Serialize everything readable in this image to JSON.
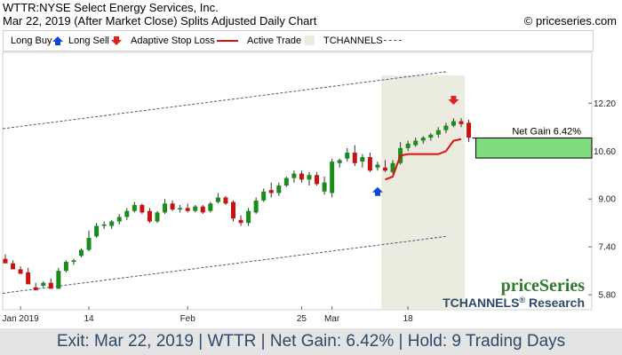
{
  "header": {
    "title": "WTTR:NYSE Select Energy Services, Inc.",
    "subtitle": "Mar 22, 2019 (After Market Close)  Splits Adjusted Daily Chart",
    "copyright": "© priceseries.com"
  },
  "legend": {
    "long_buy": "Long Buy",
    "long_sell": "Long Sell",
    "adaptive_stop": "Adaptive Stop Loss",
    "active_trade": "Active Trade",
    "tchannels": "TCHANNELS"
  },
  "brand": {
    "logo": "priceSeries",
    "tagline_main": "TCHANNELS",
    "tagline_reg": "®",
    "tagline_tail": " Research"
  },
  "footer": {
    "text": "Exit: Mar 22, 2019 | WTTR | Net Gain: 6.42% | Hold: 9 Trading Days"
  },
  "colors": {
    "up": "#1a8c1a",
    "down": "#cc1111",
    "stop": "#dd1111",
    "buy_arrow": "#1144dd",
    "sell_arrow": "#dd2222",
    "active_band": "#ebebdf",
    "gain_box": "#7fdc7f",
    "channel": "#4a5a7a"
  },
  "chart_data": {
    "type": "candlestick",
    "y_ticks": [
      5.8,
      7.4,
      9.0,
      10.6,
      12.2
    ],
    "y_tick_labels": [
      "5.80",
      "7.40",
      "9.00",
      "10.60",
      "12.20"
    ],
    "ylim": [
      5.3,
      13.9
    ],
    "x_labels": [
      {
        "label": "Jan 2019",
        "index": 2
      },
      {
        "label": "14",
        "index": 11
      },
      {
        "label": "Feb",
        "index": 24
      },
      {
        "label": "25",
        "index": 39
      },
      {
        "label": "Mar",
        "index": 43
      },
      {
        "label": "18",
        "index": 53
      }
    ],
    "candles": [
      [
        7.0,
        7.15,
        6.9,
        6.85
      ],
      [
        6.85,
        6.95,
        6.7,
        6.65
      ],
      [
        6.65,
        6.75,
        6.55,
        6.5
      ],
      [
        6.55,
        6.7,
        6.2,
        6.15
      ],
      [
        6.05,
        6.2,
        6.0,
        5.95
      ],
      [
        6.1,
        6.25,
        6.05,
        6.2
      ],
      [
        6.2,
        6.35,
        6.05,
        6.0
      ],
      [
        6.0,
        6.7,
        6.0,
        6.6
      ],
      [
        6.6,
        6.95,
        6.55,
        6.9
      ],
      [
        6.9,
        7.0,
        6.8,
        6.95
      ],
      [
        7.1,
        7.35,
        7.05,
        7.3
      ],
      [
        7.3,
        7.95,
        7.25,
        7.7
      ],
      [
        7.75,
        8.2,
        7.7,
        8.1
      ],
      [
        8.1,
        8.25,
        8.0,
        8.15
      ],
      [
        8.1,
        8.3,
        8.0,
        8.25
      ],
      [
        8.25,
        8.5,
        8.15,
        8.4
      ],
      [
        8.4,
        8.7,
        8.3,
        8.6
      ],
      [
        8.6,
        8.9,
        8.55,
        8.8
      ],
      [
        8.8,
        8.85,
        8.5,
        8.55
      ],
      [
        8.6,
        8.7,
        8.2,
        8.25
      ],
      [
        8.25,
        8.6,
        8.2,
        8.55
      ],
      [
        8.55,
        9.0,
        8.5,
        8.85
      ],
      [
        8.85,
        8.95,
        8.6,
        8.65
      ],
      [
        8.65,
        8.8,
        8.55,
        8.7
      ],
      [
        8.7,
        8.85,
        8.55,
        8.6
      ],
      [
        8.6,
        8.8,
        8.55,
        8.75
      ],
      [
        8.75,
        8.8,
        8.5,
        8.55
      ],
      [
        8.6,
        8.9,
        8.55,
        8.85
      ],
      [
        8.9,
        9.2,
        8.85,
        9.05
      ],
      [
        9.05,
        9.1,
        8.8,
        8.85
      ],
      [
        8.9,
        8.95,
        8.25,
        8.35
      ],
      [
        8.3,
        8.45,
        8.1,
        8.2
      ],
      [
        8.2,
        8.7,
        8.1,
        8.6
      ],
      [
        8.55,
        9.05,
        8.5,
        8.95
      ],
      [
        8.95,
        9.35,
        8.9,
        9.25
      ],
      [
        9.3,
        9.55,
        9.05,
        9.2
      ],
      [
        9.2,
        9.55,
        9.1,
        9.45
      ],
      [
        9.45,
        9.75,
        9.4,
        9.7
      ],
      [
        9.7,
        9.95,
        9.55,
        9.85
      ],
      [
        9.85,
        9.95,
        9.55,
        9.65
      ],
      [
        9.65,
        9.9,
        9.45,
        9.8
      ],
      [
        9.8,
        9.9,
        9.45,
        9.5
      ],
      [
        9.25,
        9.75,
        9.15,
        9.55
      ],
      [
        9.2,
        10.35,
        9.05,
        10.25
      ],
      [
        10.2,
        10.35,
        10.05,
        10.3
      ],
      [
        10.35,
        10.7,
        10.25,
        10.55
      ],
      [
        10.55,
        10.8,
        10.1,
        10.2
      ],
      [
        10.25,
        10.5,
        10.05,
        10.4
      ],
      [
        10.4,
        10.55,
        9.9,
        9.95
      ],
      [
        10.05,
        10.25,
        9.95,
        10.15
      ],
      [
        10.05,
        10.3,
        9.9,
        9.95
      ],
      [
        9.9,
        10.3,
        9.85,
        10.2
      ],
      [
        10.2,
        10.9,
        10.15,
        10.7
      ],
      [
        10.7,
        10.95,
        10.6,
        10.85
      ],
      [
        10.8,
        11.05,
        10.75,
        10.95
      ],
      [
        10.95,
        11.1,
        10.85,
        11.05
      ],
      [
        11.05,
        11.2,
        10.95,
        11.15
      ],
      [
        11.15,
        11.4,
        11.05,
        11.3
      ],
      [
        11.3,
        11.55,
        11.2,
        11.45
      ],
      [
        11.45,
        11.7,
        11.4,
        11.6
      ],
      [
        11.6,
        11.7,
        11.4,
        11.5
      ],
      [
        11.55,
        11.65,
        10.9,
        11.05
      ]
    ],
    "active_range": [
      50,
      60
    ],
    "stop_loss": [
      [
        50,
        9.65
      ],
      [
        51,
        9.75
      ],
      [
        52,
        10.45
      ],
      [
        53,
        10.5
      ],
      [
        54,
        10.5
      ],
      [
        55,
        10.5
      ],
      [
        56,
        10.5
      ],
      [
        57,
        10.5
      ],
      [
        58,
        10.6
      ],
      [
        59,
        10.95
      ],
      [
        60,
        11.0
      ]
    ],
    "buy_signal": {
      "index": 49,
      "price": 9.25
    },
    "sell_signal": {
      "index": 59,
      "price": 12.3
    },
    "channel_upper": {
      "start": [
        0,
        11.35
      ],
      "end": [
        58,
        13.25
      ]
    },
    "channel_lower": {
      "start": [
        0,
        5.85
      ],
      "end": [
        58,
        7.75
      ]
    },
    "net_gain_label": "Net Gain 6.42%",
    "gain_box": {
      "entry": 10.37,
      "exit": 11.04
    }
  }
}
